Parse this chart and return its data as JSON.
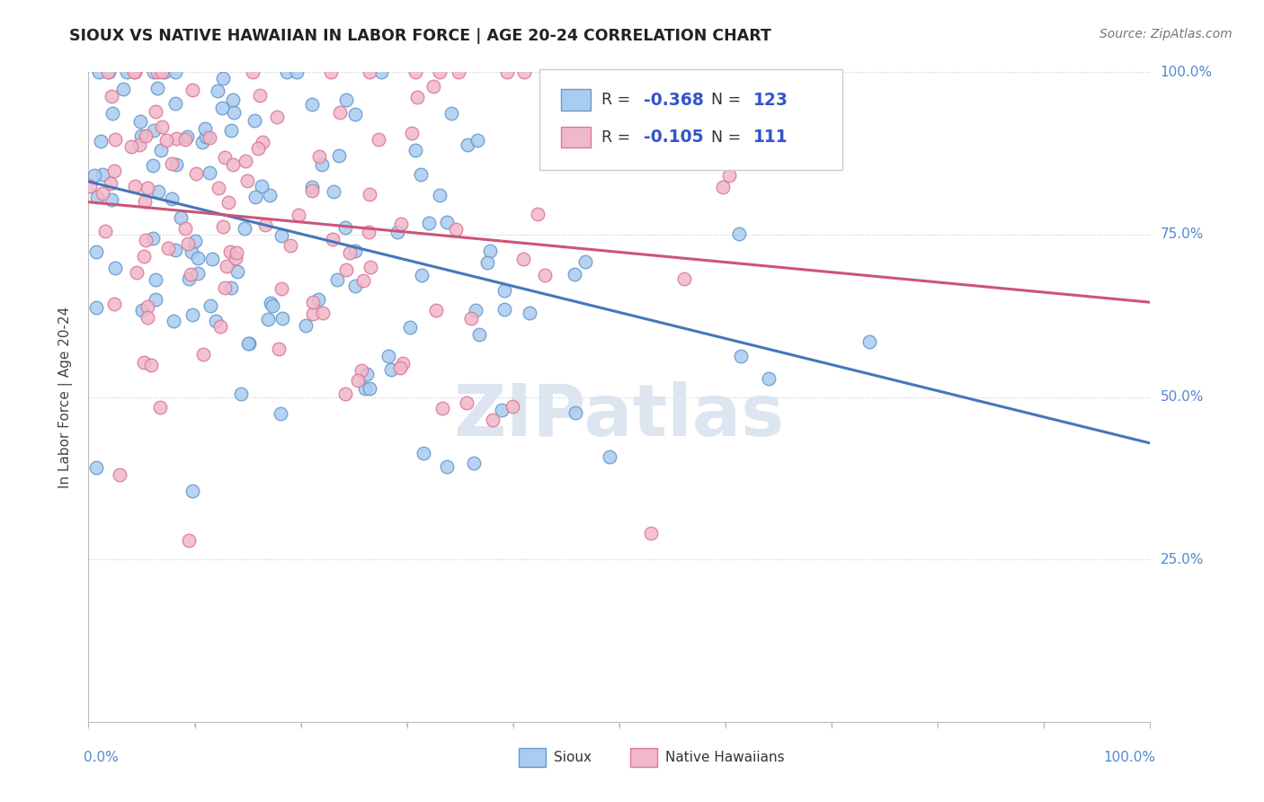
{
  "title": "SIOUX VS NATIVE HAWAIIAN IN LABOR FORCE | AGE 20-24 CORRELATION CHART",
  "source": "Source: ZipAtlas.com",
  "ylabel": "In Labor Force | Age 20-24",
  "sioux_R": -0.368,
  "sioux_N": 123,
  "hawaiian_R": -0.105,
  "hawaiian_N": 111,
  "sioux_color": "#aaccf0",
  "sioux_edge_color": "#6699cc",
  "sioux_line_color": "#4477bb",
  "hawaiian_color": "#f0b8c8",
  "hawaiian_edge_color": "#dd7799",
  "hawaiian_line_color": "#cc5577",
  "legend_blue_color": "#3355cc",
  "legend_pink_color": "#cc4466",
  "tick_color": "#8888aa",
  "axis_label_color": "#5588cc",
  "watermark_color": "#dde5f0",
  "background_color": "#ffffff",
  "grid_color": "#cccccc",
  "title_color": "#222222",
  "ylabel_color": "#444444"
}
